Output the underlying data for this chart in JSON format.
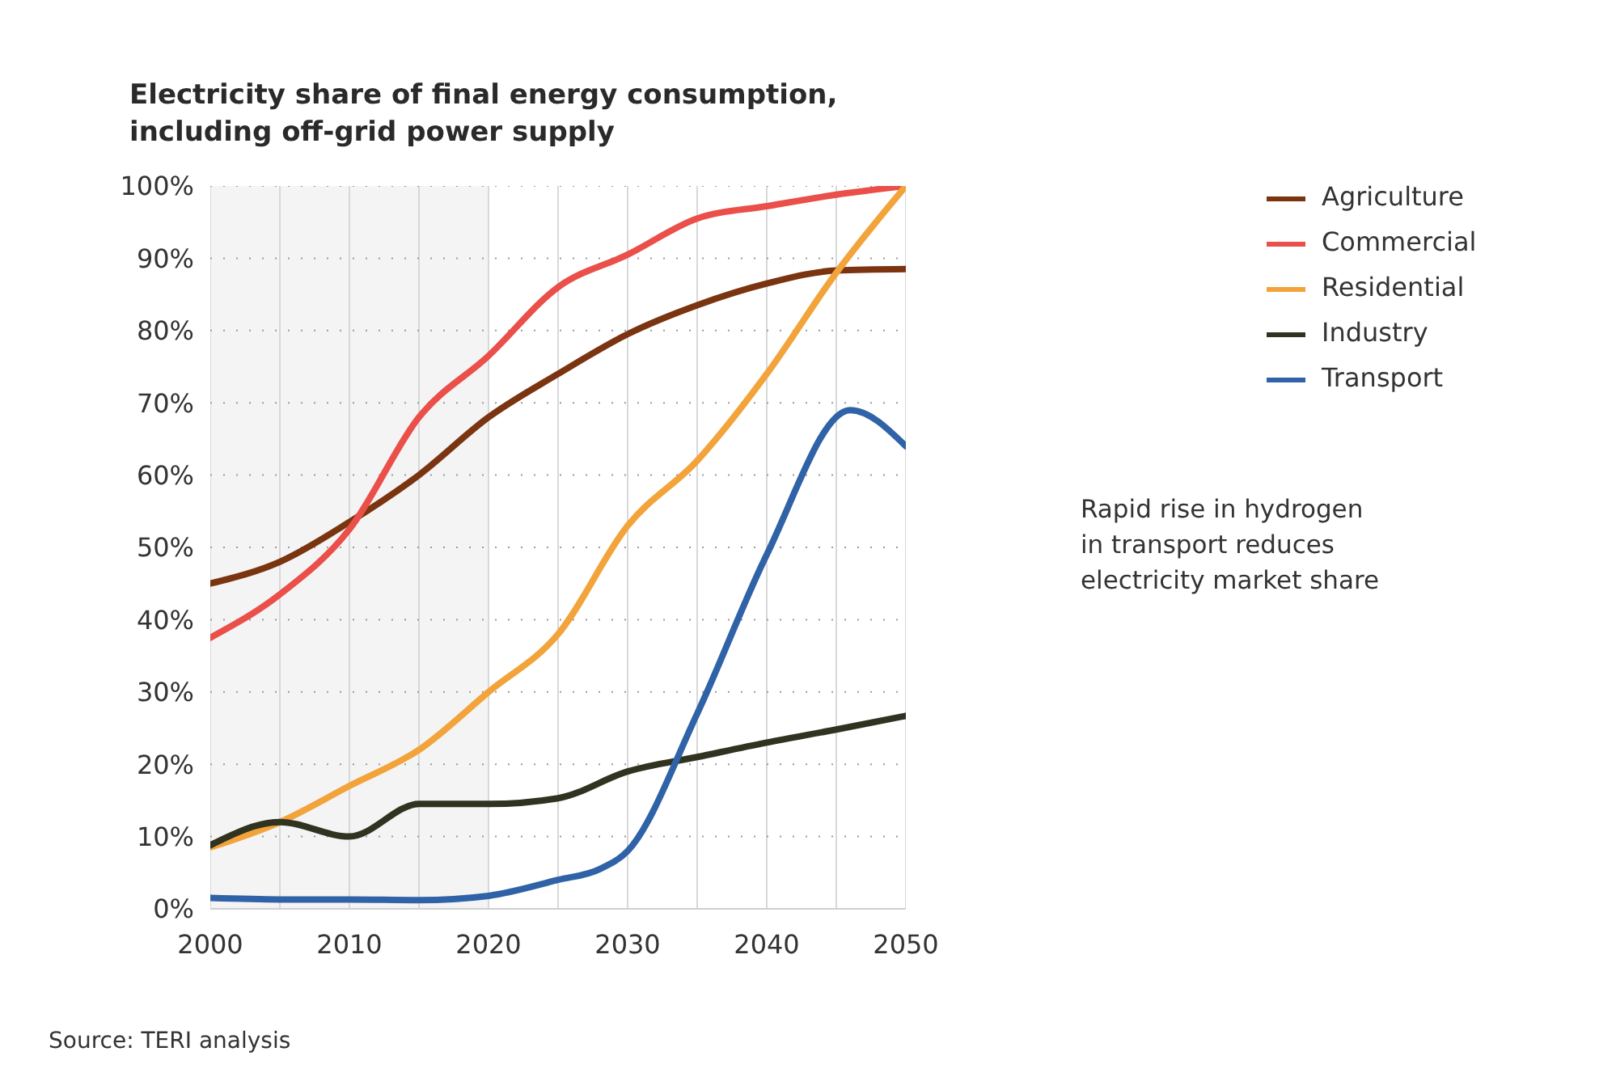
{
  "chart_data": {
    "type": "line",
    "title": "Electricity share of final energy consumption, including off-grid power supply",
    "x": [
      2000,
      2005,
      2010,
      2015,
      2020,
      2025,
      2030,
      2035,
      2040,
      2045,
      2050
    ],
    "series": [
      {
        "name": "Agriculture",
        "color": "#7a3410",
        "values": [
          45,
          48,
          53.5,
          60,
          68,
          74,
          79.5,
          83.5,
          86.5,
          88.3,
          88.5
        ]
      },
      {
        "name": "Commercial",
        "color": "#ea4f4a",
        "values": [
          37.5,
          43.5,
          52.5,
          68,
          76.5,
          86,
          90.5,
          95.5,
          97.2,
          98.8,
          100
        ]
      },
      {
        "name": "Residential",
        "color": "#f2a33a",
        "values": [
          8.5,
          12,
          17,
          22,
          30,
          38,
          53,
          62,
          74,
          88,
          100
        ]
      },
      {
        "name": "Industry",
        "color": "#2f3320",
        "values": [
          8.8,
          12,
          10,
          14.5,
          14.5,
          15.3,
          19,
          21,
          23,
          24.8,
          26.7
        ]
      },
      {
        "name": "Transport",
        "color": "#2f62a6",
        "x": [
          2000,
          2005,
          2010,
          2015,
          2020,
          2025,
          2028,
          2030,
          2035,
          2040,
          2046,
          2050
        ],
        "values": [
          1.5,
          1.3,
          1.3,
          1.2,
          1.8,
          4,
          5.5,
          8,
          27,
          49,
          69,
          64
        ]
      }
    ],
    "xlim": [
      2000,
      2050
    ],
    "xticks": [
      2000,
      {
        "value": 2005,
        "label": null
      },
      2010,
      {
        "value": 2015,
        "label": null
      },
      2020,
      {
        "value": 2025,
        "label": null
      },
      2030,
      {
        "value": 2035,
        "label": null
      },
      2040,
      {
        "value": 2045,
        "label": null
      },
      2050
    ],
    "ylim": [
      0,
      100
    ],
    "yticks": [
      {
        "value": 0,
        "label": "0%"
      },
      {
        "value": 10,
        "label": "10%"
      },
      {
        "value": 20,
        "label": "20%"
      },
      {
        "value": 30,
        "label": "30%"
      },
      {
        "value": 40,
        "label": "40%"
      },
      {
        "value": 50,
        "label": "50%"
      },
      {
        "value": 60,
        "label": "60%"
      },
      {
        "value": 70,
        "label": "70%"
      },
      {
        "value": 80,
        "label": "80%"
      },
      {
        "value": 90,
        "label": "90%"
      },
      {
        "value": 100,
        "label": "100%"
      }
    ],
    "bands": [
      {
        "axis": "x",
        "from": 2000,
        "to": 2020,
        "color": "#f4f4f4"
      }
    ],
    "annotations": [
      "Rapid rise in hydrogen in transport reduces electricity market share",
      "Source: TERI analysis"
    ],
    "grid": true,
    "legend": "right",
    "marker": "none"
  }
}
